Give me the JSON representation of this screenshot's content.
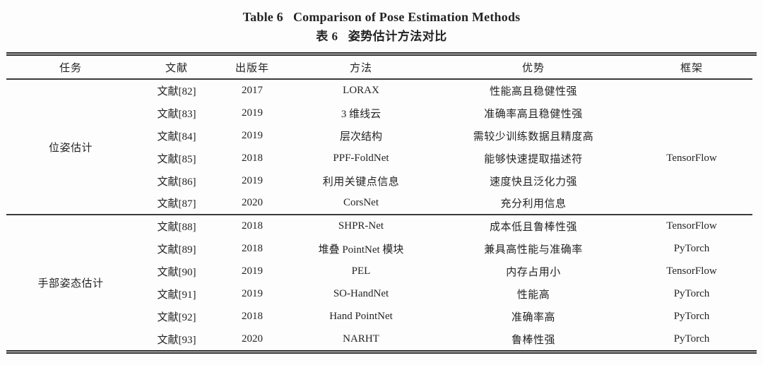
{
  "colors": {
    "background": "#fdfdfd",
    "text": "#242424",
    "rule": "#2c2c2c"
  },
  "titles": {
    "english": "Table 6   Comparison of Pose Estimation Methods",
    "chinese": "表 6   姿势估计方法对比"
  },
  "table": {
    "headers": {
      "task": "任务",
      "reference": "文献",
      "year": "出版年",
      "method": "方法",
      "advantage": "优势",
      "framework": "框架"
    },
    "groups": [
      {
        "task": "位姿估计",
        "rows": [
          {
            "reference": "文献[82]",
            "year": "2017",
            "method": "LORAX",
            "advantage": "性能高且稳健性强",
            "framework": ""
          },
          {
            "reference": "文献[83]",
            "year": "2019",
            "method": "3 维线云",
            "advantage": "准确率高且稳健性强",
            "framework": ""
          },
          {
            "reference": "文献[84]",
            "year": "2019",
            "method": "层次结构",
            "advantage": "需较少训练数据且精度高",
            "framework": ""
          },
          {
            "reference": "文献[85]",
            "year": "2018",
            "method": "PPF-FoldNet",
            "advantage": "能够快速提取描述符",
            "framework": "TensorFlow"
          },
          {
            "reference": "文献[86]",
            "year": "2019",
            "method": "利用关键点信息",
            "advantage": "速度快且泛化力强",
            "framework": ""
          },
          {
            "reference": "文献[87]",
            "year": "2020",
            "method": "CorsNet",
            "advantage": "充分利用信息",
            "framework": ""
          }
        ]
      },
      {
        "task": "手部姿态估计",
        "rows": [
          {
            "reference": "文献[88]",
            "year": "2018",
            "method": "SHPR-Net",
            "advantage": "成本低且鲁棒性强",
            "framework": "TensorFlow"
          },
          {
            "reference": "文献[89]",
            "year": "2018",
            "method": "堆叠 PointNet 模块",
            "advantage": "兼具高性能与准确率",
            "framework": "PyTorch"
          },
          {
            "reference": "文献[90]",
            "year": "2019",
            "method": "PEL",
            "advantage": "内存占用小",
            "framework": "TensorFlow"
          },
          {
            "reference": "文献[91]",
            "year": "2019",
            "method": "SO-HandNet",
            "advantage": "性能高",
            "framework": "PyTorch"
          },
          {
            "reference": "文献[92]",
            "year": "2018",
            "method": "Hand PointNet",
            "advantage": "准确率高",
            "framework": "PyTorch"
          },
          {
            "reference": "文献[93]",
            "year": "2020",
            "method": "NARHT",
            "advantage": "鲁棒性强",
            "framework": "PyTorch"
          }
        ]
      }
    ]
  }
}
